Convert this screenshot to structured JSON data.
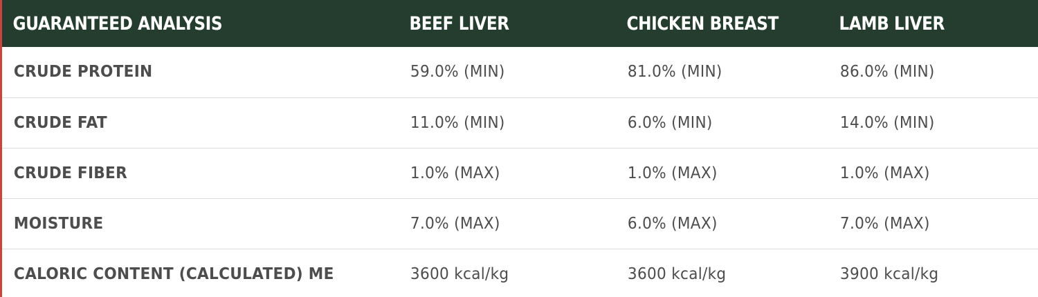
{
  "table": {
    "headers": [
      "GUARANTEED ANALYSIS",
      "BEEF LIVER",
      "CHICKEN BREAST",
      "LAMB LIVER"
    ],
    "rows": [
      [
        "CRUDE PROTEIN",
        "59.0% (MIN)",
        "81.0% (MIN)",
        "86.0% (MIN)"
      ],
      [
        "CRUDE FAT",
        "11.0% (MIN)",
        "6.0% (MIN)",
        "14.0% (MIN)"
      ],
      [
        "CRUDE FIBER",
        "1.0% (MAX)",
        "1.0% (MAX)",
        "1.0% (MAX)"
      ],
      [
        "MOISTURE",
        "7.0% (MAX)",
        "6.0% (MAX)",
        "7.0% (MAX)"
      ],
      [
        "CALORIC CONTENT (CALCULATED) ME",
        "3600 kcal/kg",
        "3600 kcal/kg",
        "3900 kcal/kg"
      ]
    ]
  },
  "colors": {
    "header_bg": "#243d2e",
    "header_text": "#ffffff",
    "body_text": "#4d4d4d",
    "row_divider": "#dcdcdc",
    "left_accent": "#c8443c"
  }
}
